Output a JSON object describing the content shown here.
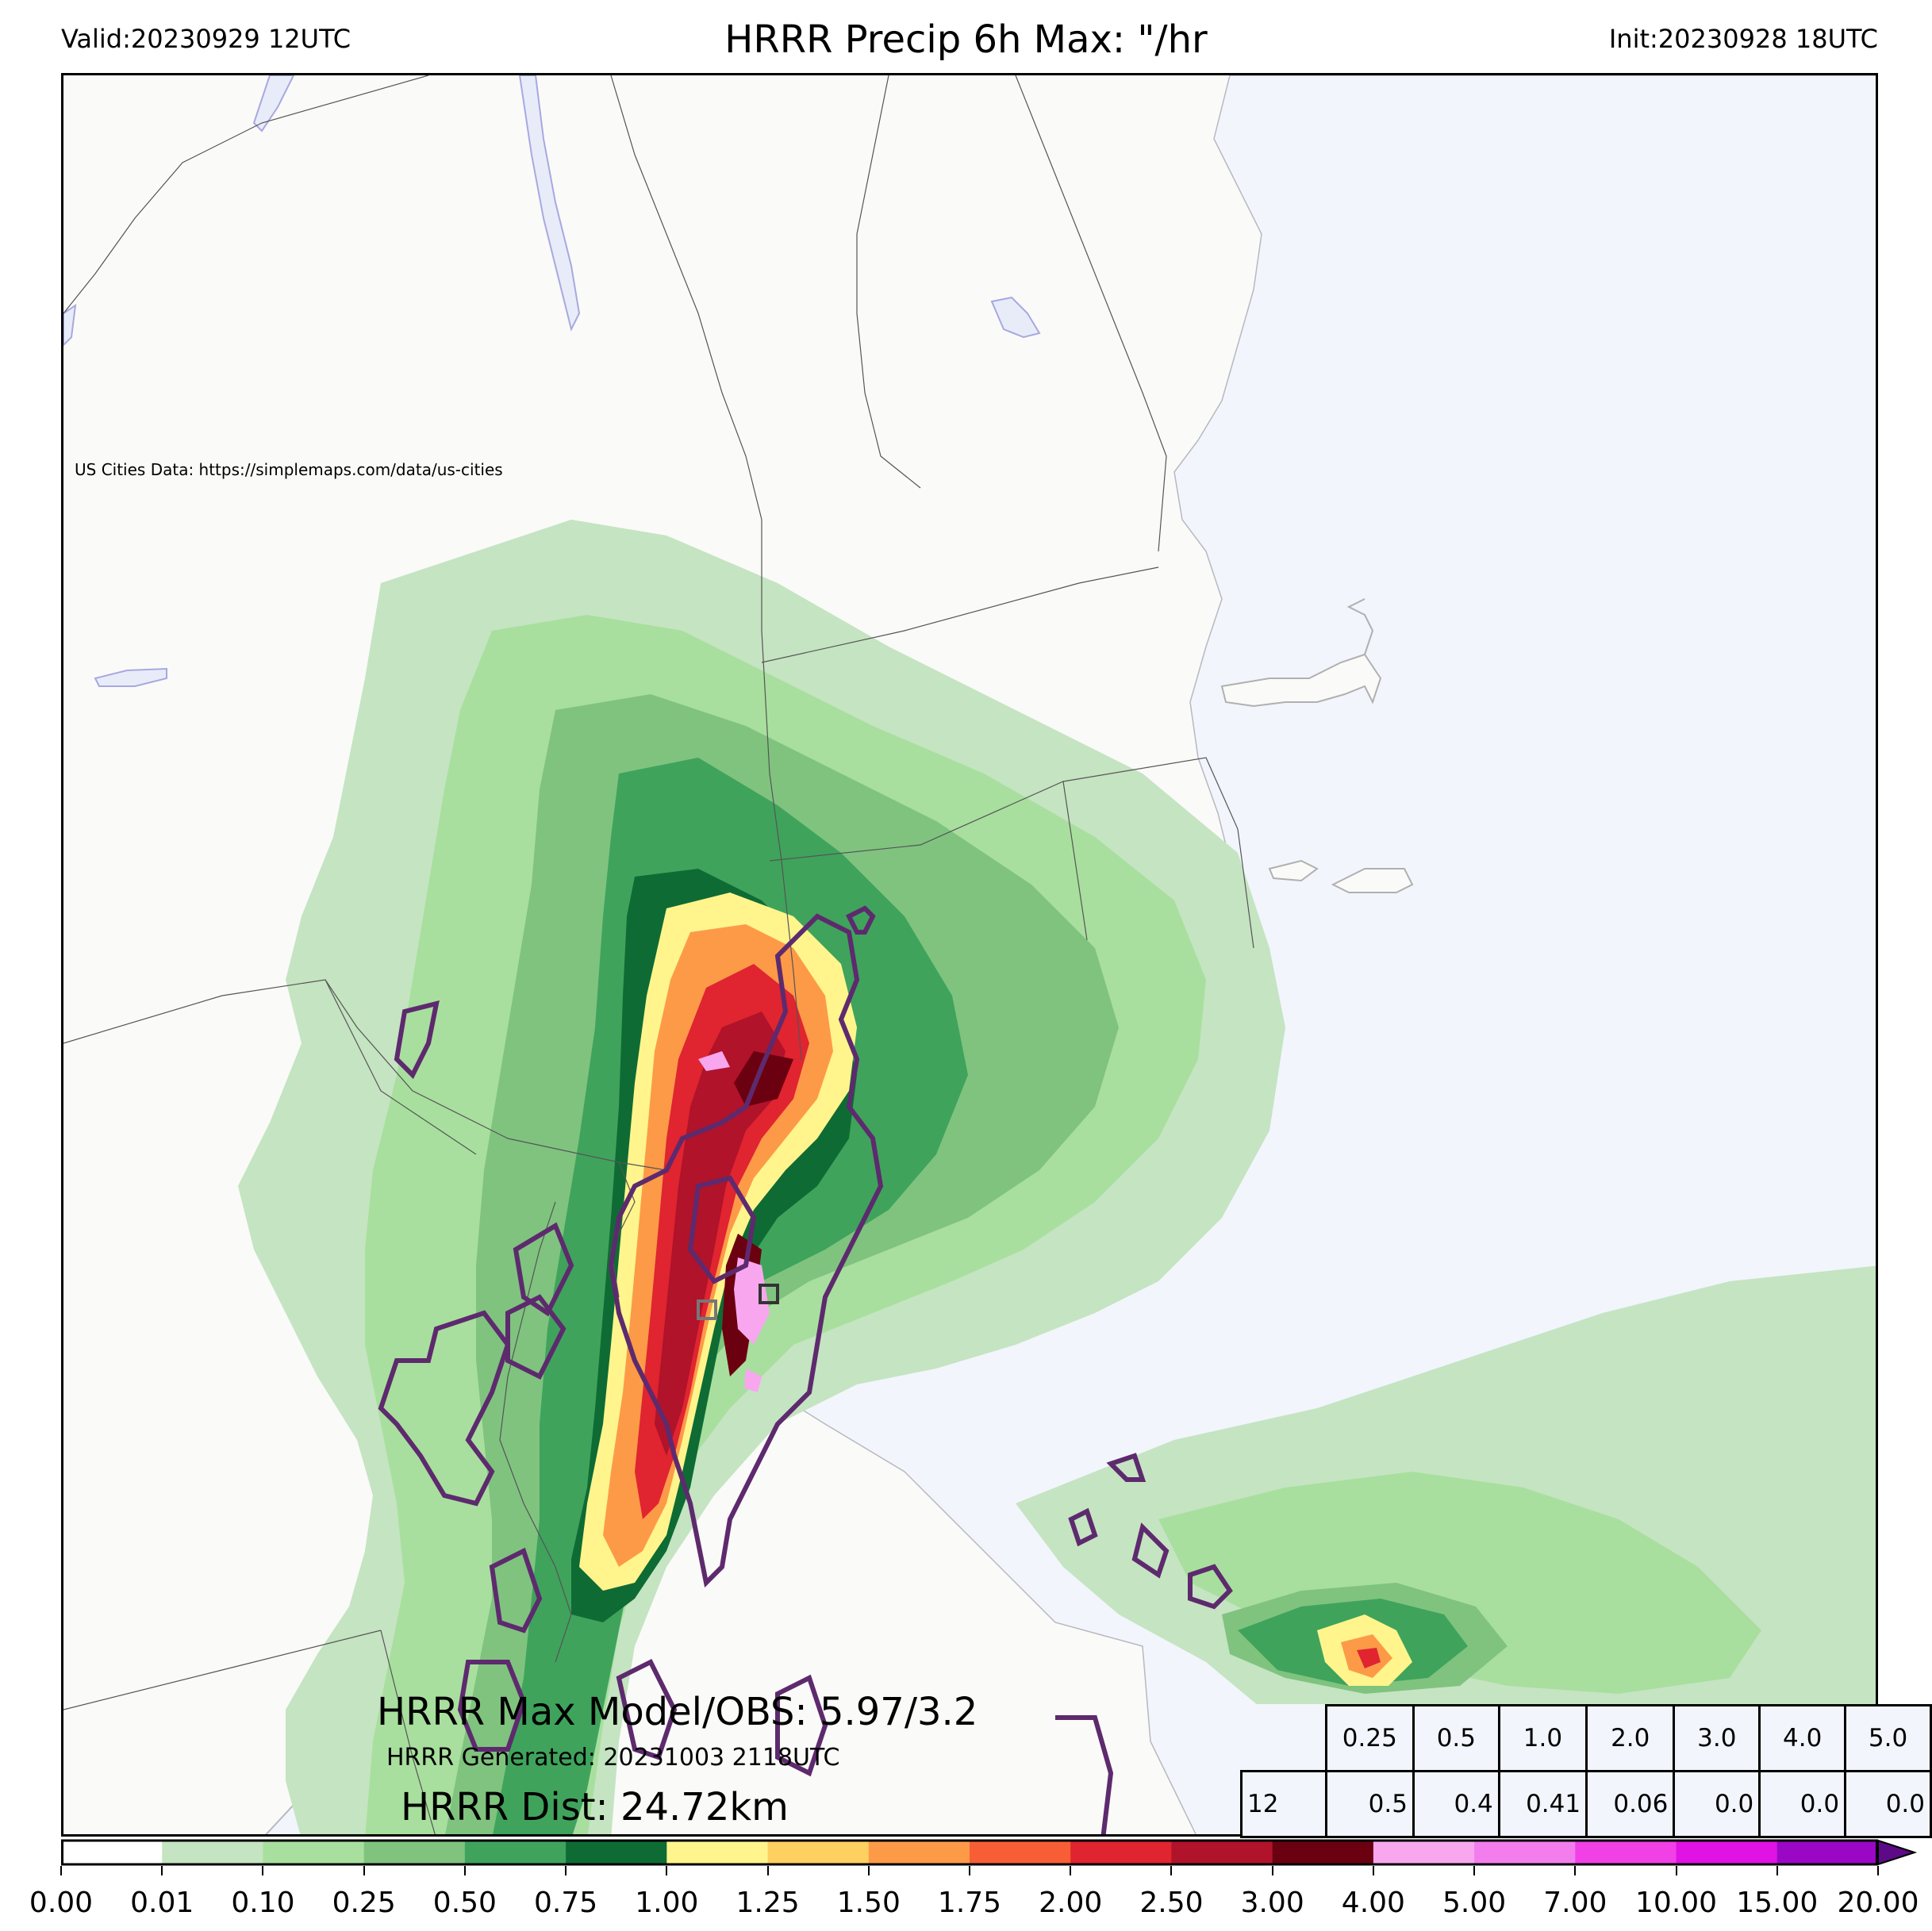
{
  "header": {
    "valid": "Valid:20230929 12UTC",
    "title": "HRRR Precip 6h Max: \"/hr",
    "init": "Init:20230928 18UTC"
  },
  "credit": "US Cities Data: https://simplemaps.com/data/us-cities",
  "stats": {
    "max_model_obs": "HRRR Max Model/OBS: 5.97/3.2",
    "generated": "HRRR Generated: 20231003 2118UTC",
    "dist": "HRRR Dist: 24.72km"
  },
  "table": {
    "thresholds": [
      "0.25",
      "0.5",
      "1.0",
      "2.0",
      "3.0",
      "4.0",
      "5.0"
    ],
    "row_label": "12",
    "values": [
      "0.5",
      "0.4",
      "0.41",
      "0.06",
      "0.0",
      "0.0",
      "0.0"
    ]
  },
  "colorbar": {
    "ticks": [
      "0.00",
      "0.01",
      "0.10",
      "0.25",
      "0.50",
      "0.75",
      "1.00",
      "1.25",
      "1.50",
      "1.75",
      "2.00",
      "2.50",
      "3.00",
      "4.00",
      "5.00",
      "7.00",
      "10.00",
      "15.00",
      "20.00"
    ],
    "colors": [
      "#ffffff",
      "#c5e4c2",
      "#a8df9e",
      "#7fc37f",
      "#3fa35c",
      "#0f6b34",
      "#fff58c",
      "#fed060",
      "#fd9a48",
      "#f85e36",
      "#e02430",
      "#b0132a",
      "#6b0010",
      "#f8a7ef",
      "#f47ded",
      "#f040e6",
      "#e012e4",
      "#9a08c6"
    ],
    "extend_color": "#5c0a86"
  },
  "map": {
    "land_color": "#fafaf8",
    "water_color": "#f2f5fb",
    "obs_contour_color": "#5e2a6e"
  }
}
